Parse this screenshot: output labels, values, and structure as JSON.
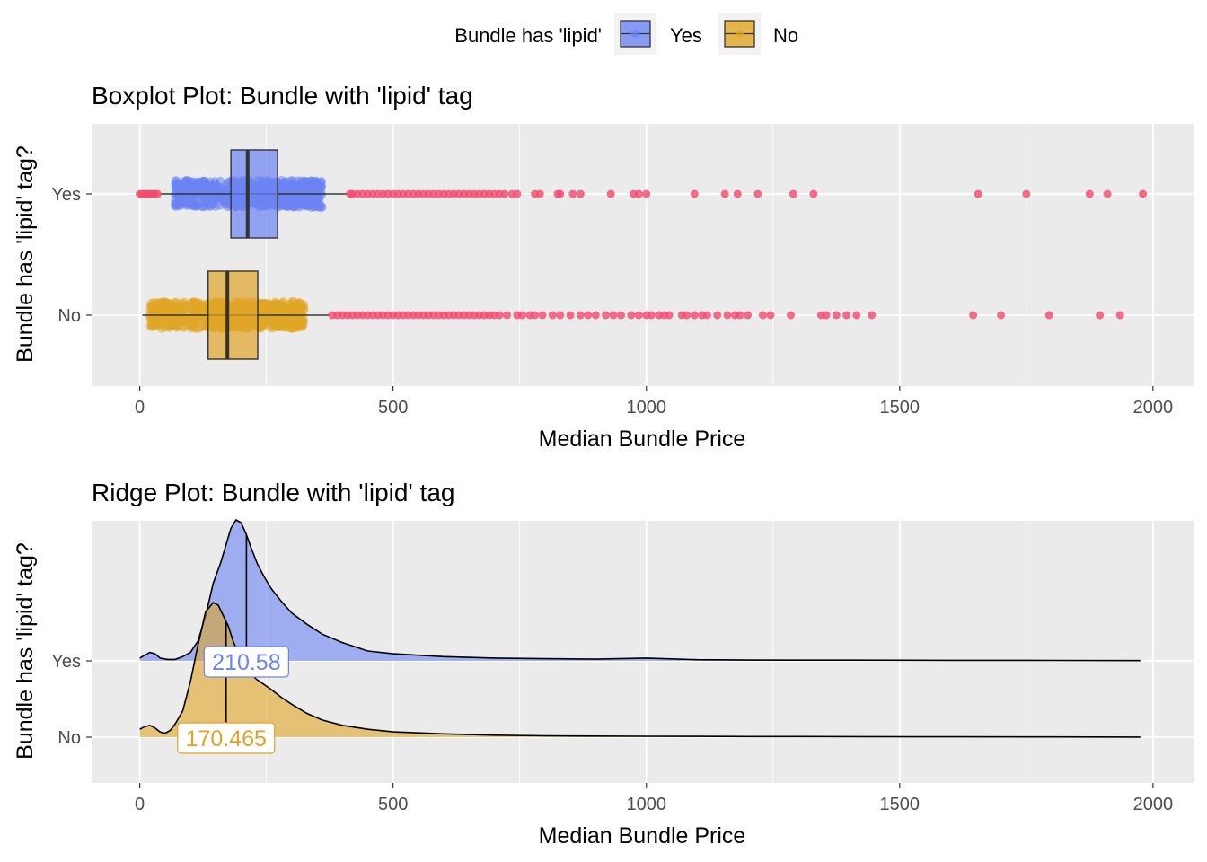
{
  "legend": {
    "title": "Bundle has 'lipid'",
    "items": [
      {
        "label": "Yes",
        "color": "#6B84F2"
      },
      {
        "label": "No",
        "color": "#E0A526"
      }
    ]
  },
  "colors": {
    "yes": "#6B84F2",
    "no": "#E0A526",
    "outlier": "#F2496E",
    "panel": "#EBEBEB",
    "grid": "#FFFFFF"
  },
  "chart_data": [
    {
      "type": "boxplot",
      "title": "Boxplot Plot: Bundle with 'lipid' tag",
      "xlabel": "Median Bundle Price",
      "ylabel": "Bundle has 'lipid' tag?",
      "xlim": [
        -95,
        2080
      ],
      "x_ticks": [
        0,
        500,
        1000,
        1500,
        2000
      ],
      "categories": [
        "Yes",
        "No"
      ],
      "grid": true,
      "series": [
        {
          "name": "Yes",
          "whisker_low": 40,
          "q1": 180,
          "median": 213,
          "q3": 272,
          "whisker_high": 410,
          "jitter_range": [
            70,
            360
          ],
          "low_outliers": [
            0,
            5,
            10,
            15,
            20,
            25,
            30,
            35
          ],
          "outliers": [
            415,
            420,
            430,
            440,
            450,
            460,
            470,
            480,
            490,
            500,
            510,
            520,
            530,
            540,
            550,
            560,
            570,
            580,
            590,
            600,
            610,
            620,
            630,
            640,
            650,
            660,
            670,
            680,
            690,
            700,
            710,
            720,
            735,
            745,
            780,
            790,
            825,
            830,
            855,
            870,
            930,
            975,
            985,
            1000,
            1095,
            1155,
            1180,
            1220,
            1290,
            1330,
            1655,
            1750,
            1875,
            1910,
            1980
          ]
        },
        {
          "name": "No",
          "whisker_low": 5,
          "q1": 135,
          "median": 173,
          "q3": 233,
          "whisker_high": 375,
          "jitter_range": [
            20,
            325
          ],
          "low_outliers": [],
          "outliers": [
            380,
            390,
            400,
            410,
            420,
            430,
            440,
            450,
            460,
            470,
            480,
            490,
            500,
            510,
            520,
            530,
            540,
            550,
            560,
            570,
            580,
            590,
            600,
            610,
            620,
            630,
            640,
            650,
            660,
            670,
            680,
            690,
            700,
            710,
            725,
            745,
            755,
            770,
            780,
            795,
            815,
            830,
            850,
            870,
            885,
            900,
            920,
            935,
            950,
            970,
            985,
            1000,
            1010,
            1025,
            1035,
            1045,
            1070,
            1080,
            1095,
            1110,
            1120,
            1140,
            1160,
            1175,
            1185,
            1200,
            1230,
            1245,
            1285,
            1345,
            1355,
            1375,
            1395,
            1415,
            1445,
            1645,
            1700,
            1795,
            1895,
            1935
          ]
        }
      ]
    },
    {
      "type": "ridge",
      "title": "Ridge Plot: Bundle with 'lipid' tag",
      "xlabel": "Median Bundle Price",
      "ylabel": "Bundle has 'lipid' tag?",
      "xlim": [
        -95,
        2080
      ],
      "x_ticks": [
        0,
        500,
        1000,
        1500,
        2000
      ],
      "categories": [
        "Yes",
        "No"
      ],
      "grid": true,
      "series": [
        {
          "name": "Yes",
          "median_label": "210.58",
          "median": 210.58,
          "density": {
            "x": [
              0,
              10,
              20,
              30,
              40,
              55,
              70,
              85,
              100,
              115,
              130,
              145,
              160,
              170,
              180,
              190,
              200,
              210,
              220,
              232,
              245,
              260,
              280,
              300,
              330,
              360,
              400,
              450,
              500,
              600,
              700,
              800,
              900,
              1000,
              1100,
              1200,
              1400,
              1600,
              1800,
              1975
            ],
            "y": [
              0.02,
              0.04,
              0.06,
              0.05,
              0.02,
              0.01,
              0.01,
              0.03,
              0.06,
              0.14,
              0.32,
              0.55,
              0.7,
              0.82,
              0.94,
              1.0,
              0.98,
              0.9,
              0.8,
              0.69,
              0.6,
              0.51,
              0.42,
              0.34,
              0.26,
              0.19,
              0.13,
              0.07,
              0.05,
              0.03,
              0.02,
              0.015,
              0.012,
              0.02,
              0.008,
              0.006,
              0.005,
              0.004,
              0.003,
              0.002
            ]
          }
        },
        {
          "name": "No",
          "median_label": "170.465",
          "median": 170.465,
          "density": {
            "x": [
              0,
              10,
              20,
              30,
              40,
              50,
              60,
              70,
              85,
              100,
              115,
              130,
              145,
              155,
              165,
              175,
              185,
              200,
              215,
              230,
              245,
              260,
              280,
              300,
              330,
              360,
              400,
              450,
              500,
              600,
              700,
              800,
              900,
              1000,
              1100,
              1200,
              1400,
              1600,
              1800,
              1975
            ],
            "y": [
              0.06,
              0.08,
              0.09,
              0.07,
              0.04,
              0.03,
              0.05,
              0.1,
              0.2,
              0.42,
              0.7,
              0.95,
              1.02,
              1.0,
              0.92,
              0.84,
              0.72,
              0.6,
              0.5,
              0.44,
              0.4,
              0.36,
              0.3,
              0.25,
              0.18,
              0.13,
              0.09,
              0.06,
              0.04,
              0.025,
              0.015,
              0.01,
              0.008,
              0.007,
              0.006,
              0.005,
              0.004,
              0.003,
              0.002,
              0.001
            ]
          }
        }
      ]
    }
  ]
}
